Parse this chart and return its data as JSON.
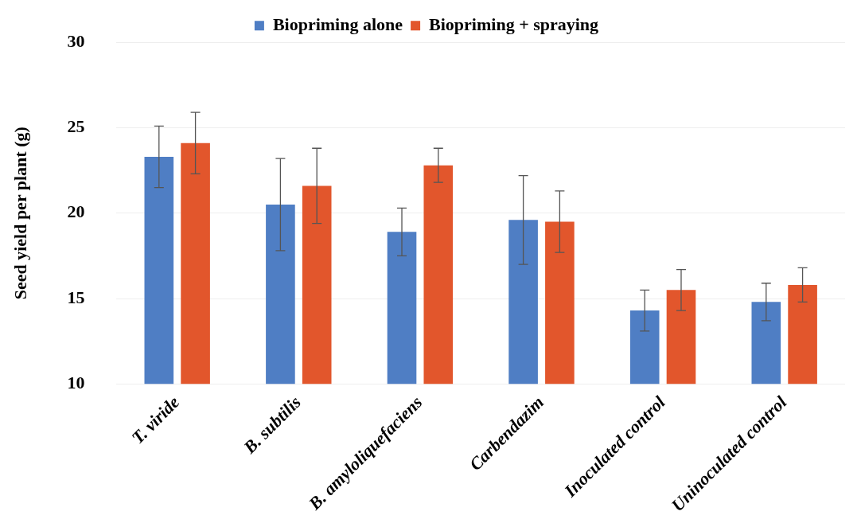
{
  "chart_data": {
    "type": "bar",
    "ylabel": "Seed yield per plant (g)",
    "categories": [
      "T. viride",
      "B. subtilis",
      "B. amyloliquefaciens",
      "Carbendazim",
      "Inoculated control",
      "Uninoculated control"
    ],
    "series": [
      {
        "name": "Biopriming alone",
        "color": "#4f7ec4",
        "values": [
          23.3,
          20.5,
          18.9,
          19.6,
          14.3,
          14.8
        ],
        "errors": [
          1.8,
          2.7,
          1.4,
          2.6,
          1.2,
          1.1
        ]
      },
      {
        "name": "Biopriming + spraying",
        "color": "#e2562c",
        "values": [
          24.1,
          21.6,
          22.8,
          19.5,
          15.5,
          15.8
        ],
        "errors": [
          1.8,
          2.2,
          1.0,
          1.8,
          1.2,
          1.0
        ]
      }
    ],
    "ylim": [
      10,
      30
    ],
    "yticks": [
      10,
      15,
      20,
      25,
      30
    ],
    "grid": "y",
    "legend": "top"
  }
}
